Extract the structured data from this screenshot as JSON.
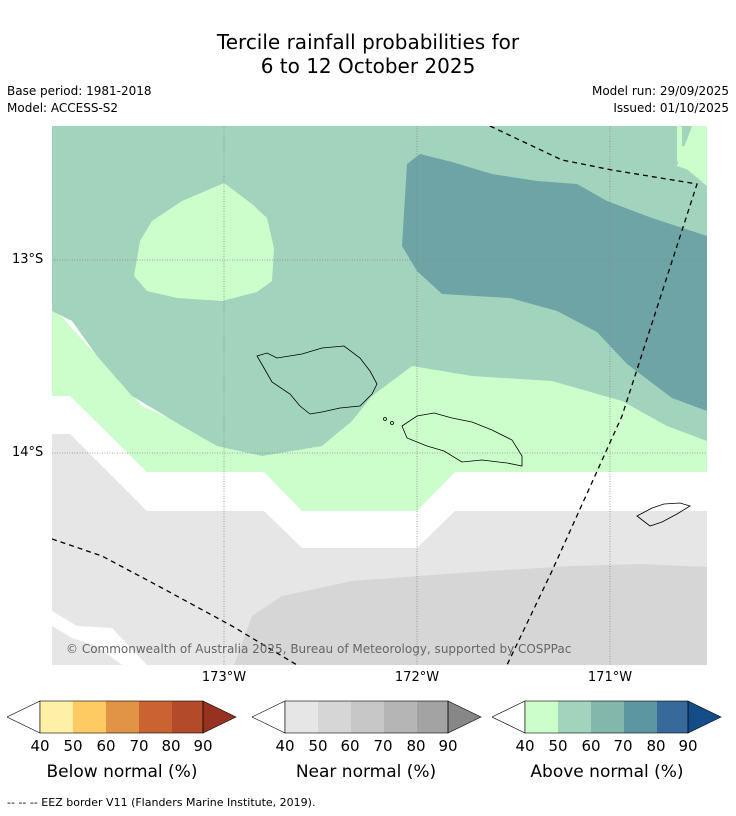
{
  "title_line1": "Tercile rainfall probabilities for",
  "title_line2": "6 to 12 October 2025",
  "meta": {
    "base_period": "Base period: 1981-2018",
    "model": "Model: ACCESS-S2",
    "model_run": "Model run: 29/09/2025",
    "issued": "Issued: 01/10/2025"
  },
  "axes": {
    "lat_labels": [
      "13°S",
      "14°S"
    ],
    "lon_labels": [
      "173°W",
      "172°W",
      "171°W"
    ]
  },
  "copyright": "© Commonwealth of Australia 2025, Bureau of Meteorology, supported by COSPPac",
  "colorbars": [
    {
      "label": "Below normal (%)",
      "ticks": [
        "40",
        "50",
        "60",
        "70",
        "80",
        "90"
      ],
      "colors": [
        "#fef0a6",
        "#fecb63",
        "#e19346",
        "#cb6231",
        "#b34b2b",
        "#973221"
      ]
    },
    {
      "label": "Near normal (%)",
      "ticks": [
        "40",
        "50",
        "60",
        "70",
        "80",
        "90"
      ],
      "colors": [
        "#e6e6e6",
        "#d6d6d6",
        "#c7c7c7",
        "#b5b5b5",
        "#a3a3a3",
        "#878787"
      ]
    },
    {
      "label": "Above normal (%)",
      "ticks": [
        "40",
        "50",
        "60",
        "70",
        "80",
        "90"
      ],
      "colors": [
        "#ccfecc",
        "#a1d3bd",
        "#83b7ac",
        "#5c96a0",
        "#376a9b",
        "#154d89"
      ]
    }
  ],
  "footer": "--  --  -- EEZ border V11 (Flanders Marine Institute, 2019)."
}
